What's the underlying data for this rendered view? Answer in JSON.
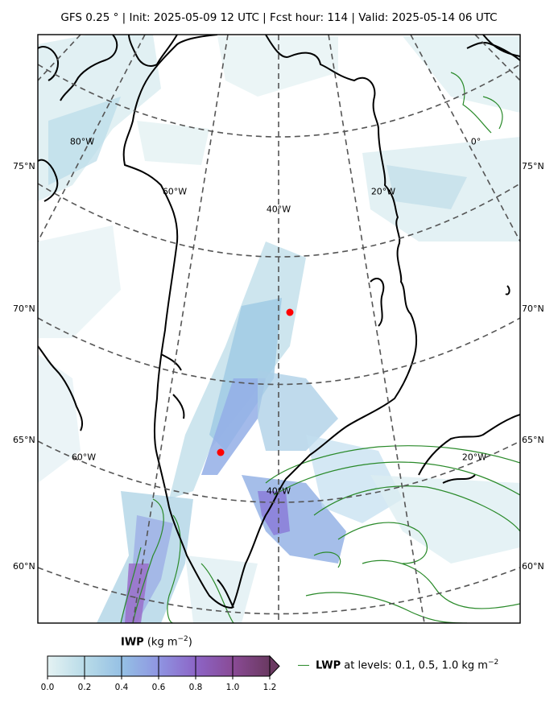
{
  "header": {
    "title": "GFS 0.25$^\\circ$  |  Init: 2025-05-09 12 UTC  |  Fcst hour: 114  |  Valid: 2025-05-14 06 UTC",
    "title_display": "GFS 0.25 °  |  Init: 2025-05-09 12 UTC  |  Fcst hour: 114  |  Valid: 2025-05-14 06 UTC"
  },
  "map": {
    "region": "Greenland",
    "projection_grid": "dashed",
    "lat_labels": [
      "75°N",
      "70°N",
      "65°N",
      "60°N"
    ],
    "lon_labels_upper": [
      "80°W",
      "60°W",
      "40°W",
      "20°W",
      "0°"
    ],
    "lon_labels_lower": [
      "60°W",
      "40°W",
      "20°W"
    ],
    "markers": [
      {
        "name": "marker-north",
        "color": "#ff0000"
      },
      {
        "name": "marker-south",
        "color": "#ff0000"
      }
    ],
    "colors": {
      "coast": "#000000",
      "grid": "#555555",
      "lwp_contour": "#2a8a2a"
    }
  },
  "colorbar": {
    "variable": "IWP",
    "units": "(kg m$^{-2}$)",
    "units_display": "(kg m",
    "units_sup": "−2",
    "units_close": ")",
    "ticks": [
      "0.0",
      "0.2",
      "0.4",
      "0.6",
      "0.8",
      "1.0",
      "1.2"
    ],
    "extend": "max",
    "colors": [
      "#dbeef0",
      "#a6d1e3",
      "#8db4e6",
      "#8f8ce0",
      "#8d5ec4",
      "#8a4a98",
      "#6b3a61"
    ]
  },
  "lwp_legend": {
    "variable": "LWP",
    "text": "at levels: 0.1, 0.5, 1.0  kg m",
    "sup": "−2"
  }
}
